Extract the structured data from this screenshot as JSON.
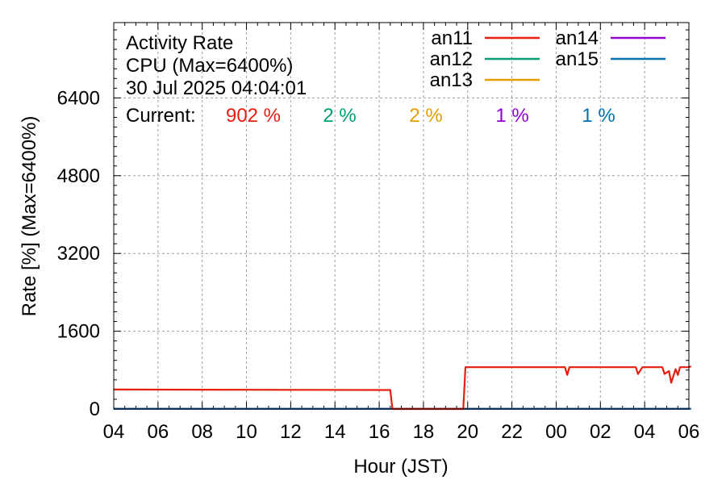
{
  "chart_data": {
    "type": "line",
    "title_lines": [
      "Activity Rate",
      "CPU (Max=6400%)",
      "30 Jul 2025 04:04:01"
    ],
    "current_label": "Current:",
    "xlabel": "Hour (JST)",
    "ylabel": "Rate [%]  (Max=6400%)",
    "x_tick_labels": [
      "04",
      "06",
      "08",
      "10",
      "12",
      "14",
      "16",
      "18",
      "20",
      "22",
      "00",
      "02",
      "04",
      "06"
    ],
    "xlim": [
      0,
      26
    ],
    "ylim": [
      0,
      7950
    ],
    "y_ticks": [
      0,
      1600,
      3200,
      4800,
      6400
    ],
    "grid": true,
    "legend_placement": "top-right",
    "series": [
      {
        "name": "an11",
        "color": "#e51e10",
        "current": "902 %",
        "points": [
          [
            0,
            400
          ],
          [
            12.5,
            390
          ],
          [
            12.6,
            0
          ],
          [
            15.8,
            0
          ],
          [
            15.9,
            860
          ],
          [
            20.4,
            860
          ],
          [
            20.5,
            700
          ],
          [
            20.6,
            860
          ],
          [
            23.6,
            860
          ],
          [
            23.7,
            720
          ],
          [
            23.9,
            860
          ],
          [
            24.8,
            860
          ],
          [
            24.9,
            720
          ],
          [
            25.1,
            780
          ],
          [
            25.2,
            540
          ],
          [
            25.4,
            820
          ],
          [
            25.5,
            700
          ],
          [
            25.6,
            860
          ],
          [
            26.0,
            860
          ],
          [
            26.1,
            880
          ]
        ]
      },
      {
        "name": "an12",
        "color": "#009e73",
        "current": "2 %",
        "points": [
          [
            0,
            5
          ],
          [
            26.1,
            5
          ]
        ]
      },
      {
        "name": "an13",
        "color": "#e69f00",
        "current": "2 %",
        "points": [
          [
            0,
            5
          ],
          [
            26.1,
            5
          ]
        ]
      },
      {
        "name": "an14",
        "color": "#9400d3",
        "current": "1 %",
        "points": [
          [
            0,
            3
          ],
          [
            26.1,
            3
          ]
        ]
      },
      {
        "name": "an15",
        "color": "#0072b2",
        "current": "1 %",
        "points": [
          [
            0,
            3
          ],
          [
            26.1,
            3
          ]
        ]
      }
    ]
  }
}
